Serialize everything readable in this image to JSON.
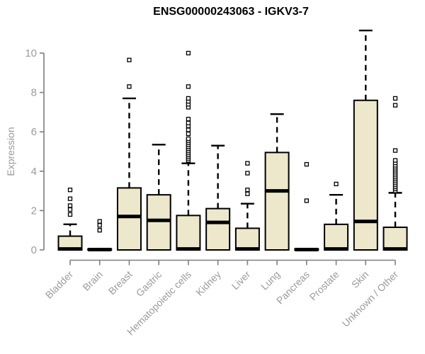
{
  "title": "ENSG00000243063 - IGKV3-7",
  "y_axis": {
    "label": "Expression"
  },
  "colors": {
    "background": "#FFFFFF",
    "box_fill": "#EDE8CC",
    "box_stroke": "#000000",
    "median": "#000000",
    "whisker": "#000000",
    "outlier_stroke": "#000000",
    "axis_line": "#7E7E7E",
    "tick_label": "#9B9B9B",
    "category_label": "#9B9B9B",
    "title": "#000000"
  },
  "chart_data": {
    "type": "boxplot",
    "title": "ENSG00000243063 - IGKV3-7",
    "xlabel": "",
    "ylabel": "Expression",
    "ylim": [
      0,
      11.3
    ],
    "yticks": [
      0,
      2,
      4,
      6,
      8,
      10
    ],
    "grid": false,
    "legend": "none",
    "categories": [
      "Bladder",
      "Brain",
      "Breast",
      "Gastric",
      "Hematopoietic cells",
      "Kidney",
      "Liver",
      "Lung",
      "Pancreas",
      "Prostate",
      "Skin",
      "Unknown / Other"
    ],
    "series": [
      {
        "name": "Bladder",
        "whisker_low": 0,
        "q1": 0,
        "median": 0.05,
        "q3": 0.7,
        "whisker_high": 1.3,
        "outliers": [
          1.8,
          2.05,
          2.25,
          2.6,
          3.05
        ]
      },
      {
        "name": "Brain",
        "whisker_low": 0,
        "q1": 0,
        "median": 0.02,
        "q3": 0.05,
        "whisker_high": 0.05,
        "outliers": [
          1.0,
          1.25,
          1.45
        ]
      },
      {
        "name": "Breast",
        "whisker_low": 0,
        "q1": 0,
        "median": 1.7,
        "q3": 3.15,
        "whisker_high": 7.7,
        "outliers": [
          8.3,
          9.65
        ]
      },
      {
        "name": "Gastric",
        "whisker_low": 0,
        "q1": 0,
        "median": 1.5,
        "q3": 2.8,
        "whisker_high": 5.35,
        "outliers": []
      },
      {
        "name": "Hematopoietic cells",
        "whisker_low": 0,
        "q1": 0,
        "median": 0.05,
        "q3": 1.75,
        "whisker_high": 4.4,
        "outliers": [
          4.55,
          4.65,
          4.75,
          4.85,
          4.95,
          5.05,
          5.15,
          5.25,
          5.35,
          5.45,
          5.55,
          5.65,
          5.9,
          6.1,
          6.3,
          6.45,
          6.65,
          7.25,
          7.4,
          7.55,
          7.7,
          8.3,
          10.0
        ]
      },
      {
        "name": "Kidney",
        "whisker_low": 0,
        "q1": 0,
        "median": 1.4,
        "q3": 2.1,
        "whisker_high": 5.3,
        "outliers": []
      },
      {
        "name": "Liver",
        "whisker_low": 0,
        "q1": 0,
        "median": 0.05,
        "q3": 1.1,
        "whisker_high": 2.35,
        "outliers": [
          2.85,
          3.05,
          3.9,
          4.4
        ]
      },
      {
        "name": "Lung",
        "whisker_low": 0,
        "q1": 0,
        "median": 3.0,
        "q3": 4.95,
        "whisker_high": 6.9,
        "outliers": []
      },
      {
        "name": "Pancreas",
        "whisker_low": 0,
        "q1": 0,
        "median": 0.02,
        "q3": 0.05,
        "whisker_high": 0.05,
        "outliers": [
          2.5,
          4.35
        ]
      },
      {
        "name": "Prostate",
        "whisker_low": 0,
        "q1": 0,
        "median": 0.05,
        "q3": 1.3,
        "whisker_high": 2.8,
        "outliers": [
          3.35
        ]
      },
      {
        "name": "Skin",
        "whisker_low": 0,
        "q1": 0,
        "median": 1.45,
        "q3": 7.6,
        "whisker_high": 11.15,
        "outliers": []
      },
      {
        "name": "Unknown / Other",
        "whisker_low": 0,
        "q1": 0,
        "median": 0.05,
        "q3": 1.15,
        "whisker_high": 2.9,
        "outliers": [
          3.0,
          3.1,
          3.2,
          3.3,
          3.4,
          3.5,
          3.6,
          3.7,
          3.8,
          3.9,
          4.0,
          4.1,
          4.2,
          4.3,
          4.42,
          4.55,
          5.05,
          7.35,
          7.7
        ]
      }
    ]
  }
}
